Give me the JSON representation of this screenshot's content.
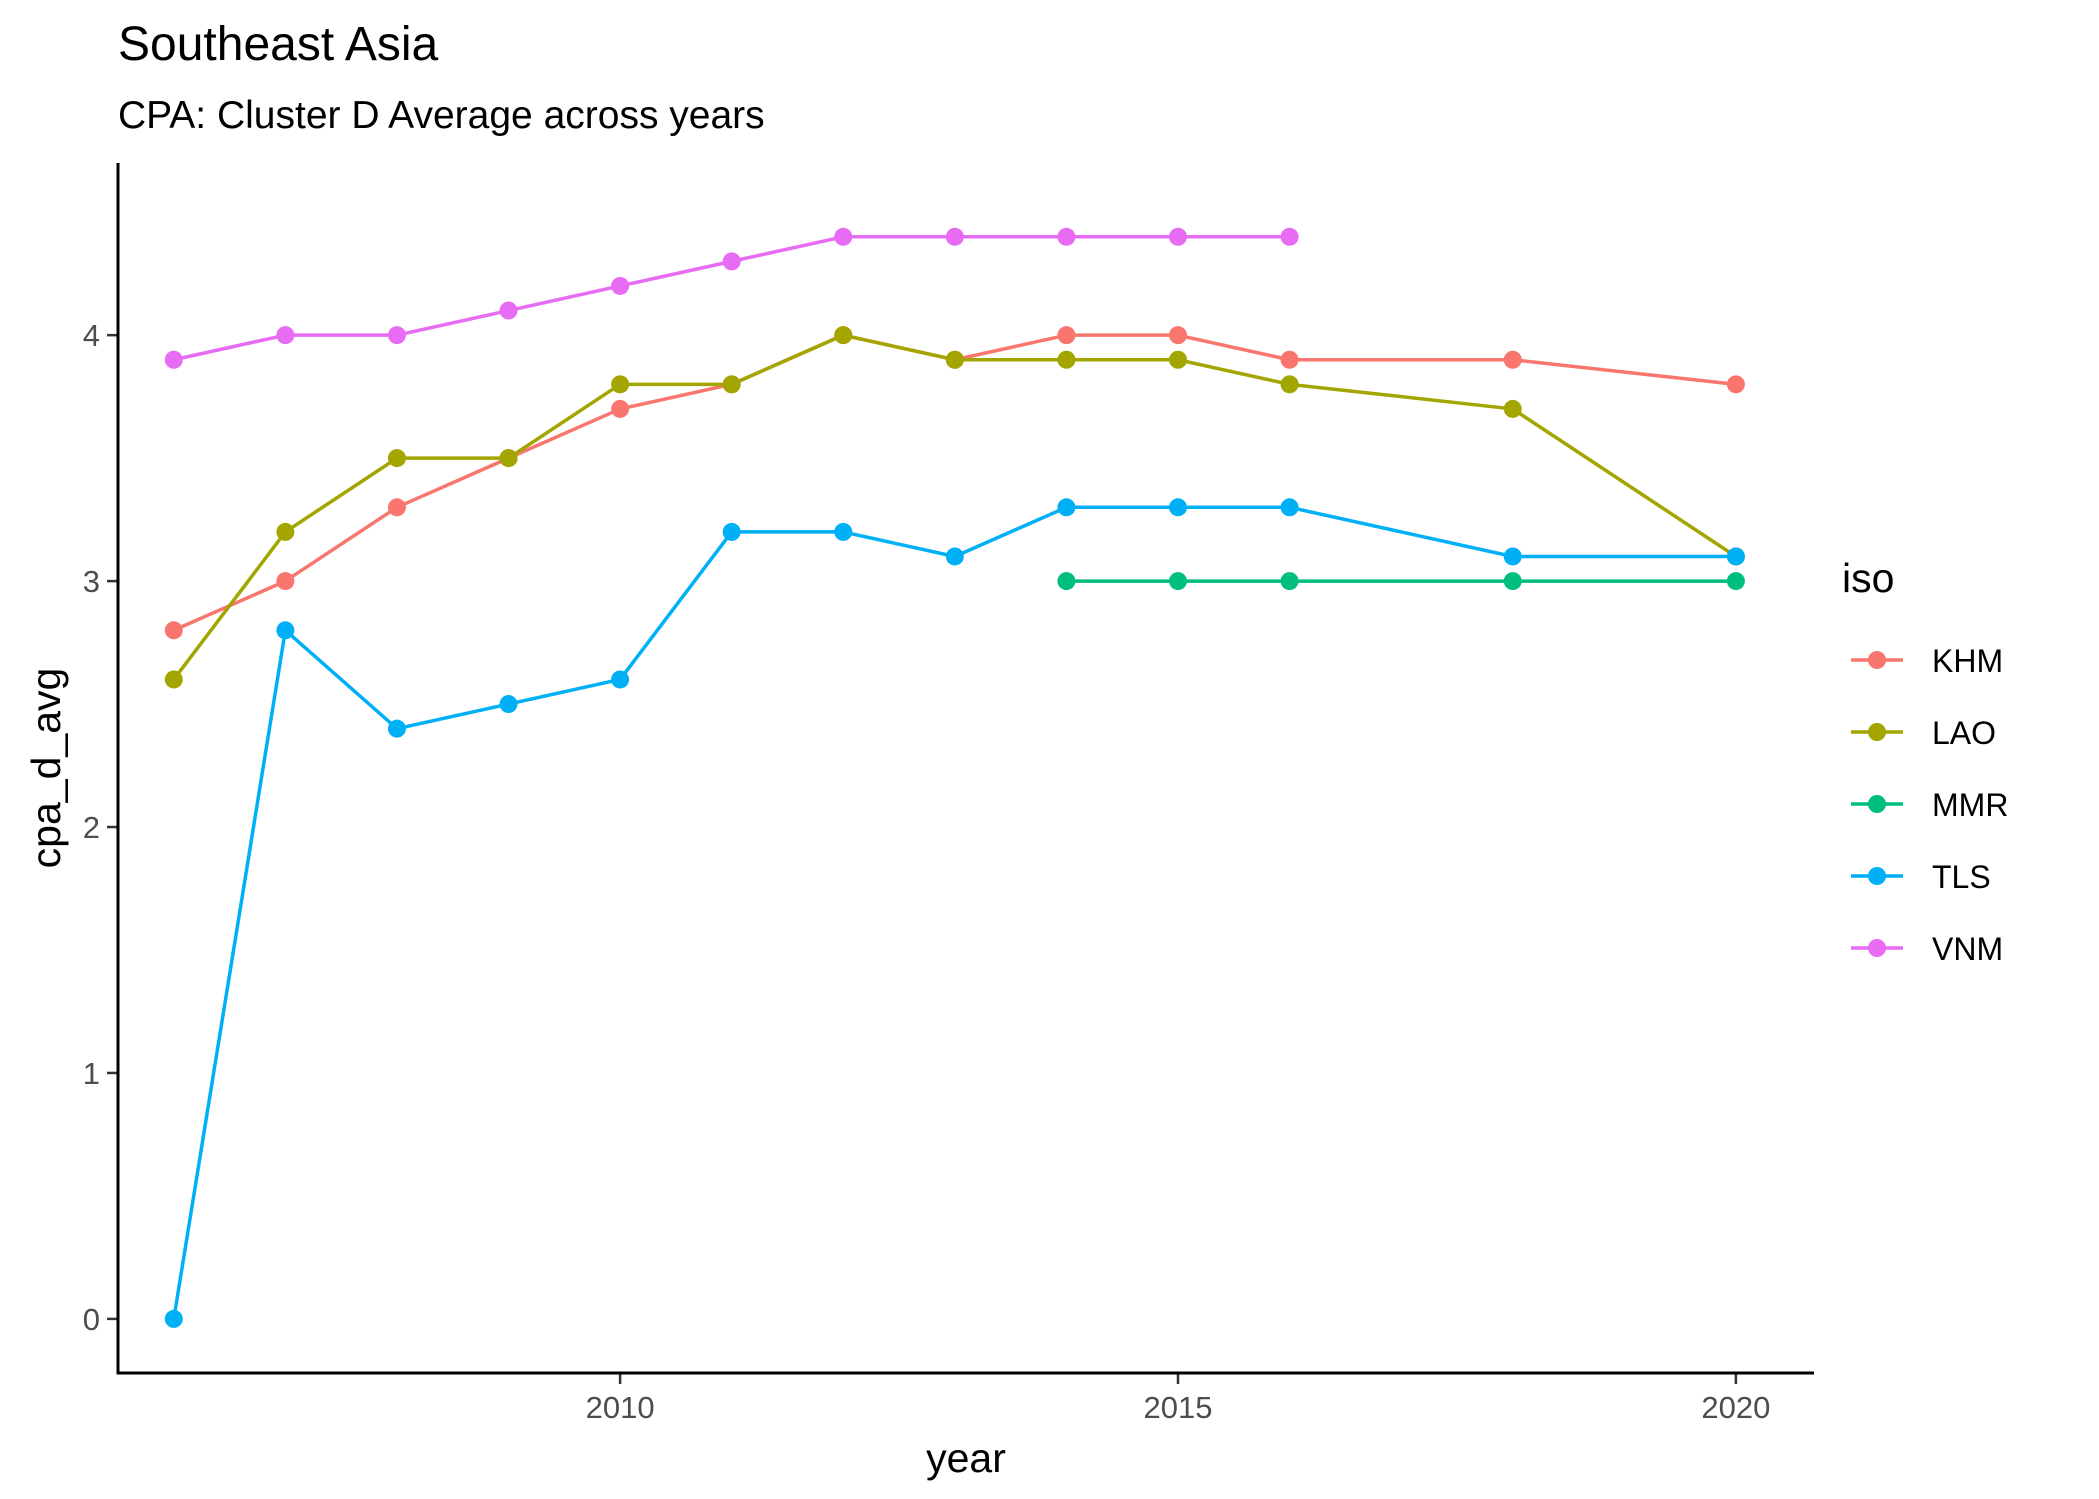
{
  "chart_data": {
    "type": "line",
    "title": "Southeast Asia",
    "subtitle": "CPA: Cluster D Average across years",
    "xlabel": "year",
    "ylabel": "cpa_d_avg",
    "xlim": [
      2005.5,
      2020.7
    ],
    "ylim": [
      -0.22,
      4.7
    ],
    "x_ticks": [
      2010,
      2015,
      2020
    ],
    "y_ticks": [
      0,
      1,
      2,
      3,
      4
    ],
    "grid": false,
    "legend": {
      "title": "iso",
      "position": "right"
    },
    "series": [
      {
        "name": "KHM",
        "color": "#F8766D",
        "x": [
          2006,
          2007,
          2008,
          2009,
          2010,
          2011,
          2012,
          2013,
          2014,
          2015,
          2016,
          2018,
          2020
        ],
        "y": [
          2.8,
          3.0,
          3.3,
          3.5,
          3.7,
          3.8,
          4.0,
          3.9,
          4.0,
          4.0,
          3.9,
          3.9,
          3.8
        ]
      },
      {
        "name": "LAO",
        "color": "#A3A500",
        "x": [
          2006,
          2007,
          2008,
          2009,
          2010,
          2011,
          2012,
          2013,
          2014,
          2015,
          2016,
          2018,
          2020
        ],
        "y": [
          2.6,
          3.2,
          3.5,
          3.5,
          3.8,
          3.8,
          4.0,
          3.9,
          3.9,
          3.9,
          3.8,
          3.7,
          3.1
        ]
      },
      {
        "name": "MMR",
        "color": "#00BF7D",
        "x": [
          2014,
          2015,
          2016,
          2018,
          2020
        ],
        "y": [
          3.0,
          3.0,
          3.0,
          3.0,
          3.0
        ]
      },
      {
        "name": "TLS",
        "color": "#00B0F6",
        "x": [
          2006,
          2007,
          2008,
          2009,
          2010,
          2011,
          2012,
          2013,
          2014,
          2015,
          2016,
          2018,
          2020
        ],
        "y": [
          0.0,
          2.8,
          2.4,
          2.5,
          2.6,
          3.2,
          3.2,
          3.1,
          3.3,
          3.3,
          3.3,
          3.1,
          3.1
        ]
      },
      {
        "name": "VNM",
        "color": "#E76BF3",
        "x": [
          2006,
          2007,
          2008,
          2009,
          2010,
          2011,
          2012,
          2013,
          2014,
          2015,
          2016
        ],
        "y": [
          3.9,
          4.0,
          4.0,
          4.1,
          4.2,
          4.3,
          4.4,
          4.4,
          4.4,
          4.4,
          4.4
        ]
      }
    ]
  }
}
